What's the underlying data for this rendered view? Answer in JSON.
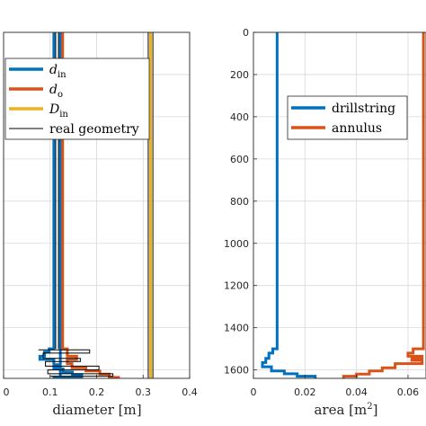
{
  "chart_data": [
    {
      "type": "line",
      "xlabel": "diameter [m]",
      "ylabel": "",
      "xlim": [
        0,
        0.4
      ],
      "ylim": [
        0,
        1640
      ],
      "y_reversed": true,
      "grid": true,
      "legend_position": "upper-left",
      "x_ticks": [
        "0",
        "0.1",
        "0.2",
        "0.3",
        "0.4"
      ],
      "legend": [
        {
          "key": "d_in",
          "label": "d",
          "sub": "in",
          "color": "#0072BD"
        },
        {
          "key": "d_o",
          "label": "d",
          "sub": "o",
          "color": "#D95319"
        },
        {
          "key": "D_in",
          "label": "D",
          "sub": "in",
          "color": "#EDB120"
        },
        {
          "key": "real",
          "label": "real geometry",
          "sub": "",
          "color": "#000000"
        }
      ],
      "series": [
        {
          "key": "d_in",
          "color": "#0072BD",
          "points": [
            [
              0.108,
              0
            ],
            [
              0.108,
              1500
            ],
            [
              0.098,
              1500
            ],
            [
              0.098,
              1515
            ],
            [
              0.088,
              1515
            ],
            [
              0.088,
              1535
            ],
            [
              0.078,
              1535
            ],
            [
              0.078,
              1550
            ],
            [
              0.108,
              1550
            ],
            [
              0.108,
              1575
            ],
            [
              0.118,
              1575
            ],
            [
              0.118,
              1585
            ],
            [
              0.108,
              1585
            ],
            [
              0.108,
              1595
            ],
            [
              0.128,
              1595
            ],
            [
              0.128,
              1610
            ],
            [
              0.148,
              1610
            ],
            [
              0.148,
              1622
            ],
            [
              0.168,
              1622
            ],
            [
              0.168,
              1635
            ],
            [
              0.108,
              1635
            ],
            [
              0.108,
              1640
            ]
          ]
        },
        {
          "key": "d_in_outer",
          "color": "#0072BD",
          "points": [
            [
              0.122,
              0
            ],
            [
              0.122,
              1500
            ],
            [
              0.122,
              1640
            ]
          ]
        },
        {
          "key": "d_o",
          "color": "#D95319",
          "points": [
            [
              0.127,
              0
            ],
            [
              0.127,
              1500
            ],
            [
              0.137,
              1500
            ],
            [
              0.137,
              1535
            ],
            [
              0.157,
              1535
            ],
            [
              0.157,
              1550
            ],
            [
              0.137,
              1550
            ],
            [
              0.137,
              1570
            ],
            [
              0.147,
              1570
            ],
            [
              0.147,
              1590
            ],
            [
              0.177,
              1590
            ],
            [
              0.177,
              1605
            ],
            [
              0.207,
              1605
            ],
            [
              0.207,
              1620
            ],
            [
              0.227,
              1620
            ],
            [
              0.227,
              1635
            ],
            [
              0.247,
              1635
            ],
            [
              0.247,
              1640
            ]
          ]
        },
        {
          "key": "D_in",
          "color": "#EDB120",
          "points": [
            [
              0.316,
              0
            ],
            [
              0.316,
              1640
            ]
          ]
        },
        {
          "key": "real",
          "color": "#000000",
          "points": [
            [
              0.311,
              0
            ],
            [
              0.311,
              1640
            ]
          ]
        },
        {
          "key": "real",
          "color": "#000000",
          "points": [
            [
              0.321,
              0
            ],
            [
              0.321,
              1640
            ]
          ]
        },
        {
          "key": "real",
          "color": "#000000",
          "points": [
            [
              0.112,
              0
            ],
            [
              0.112,
              1500
            ]
          ]
        },
        {
          "key": "real",
          "color": "#000000",
          "points": [
            [
              0.118,
              0
            ],
            [
              0.118,
              1500
            ]
          ]
        },
        {
          "key": "real",
          "color": "#000000",
          "points": [
            [
              0.075,
              1505
            ],
            [
              0.185,
              1505
            ],
            [
              0.185,
              1520
            ],
            [
              0.085,
              1520
            ],
            [
              0.085,
              1545
            ],
            [
              0.165,
              1545
            ],
            [
              0.165,
              1560
            ],
            [
              0.09,
              1560
            ],
            [
              0.09,
              1582
            ],
            [
              0.205,
              1582
            ],
            [
              0.205,
              1600
            ],
            [
              0.095,
              1600
            ],
            [
              0.095,
              1618
            ],
            [
              0.235,
              1618
            ],
            [
              0.235,
              1630
            ],
            [
              0.1,
              1630
            ]
          ]
        }
      ]
    },
    {
      "type": "line",
      "xlabel": "area [m",
      "xlabel_sup": "2",
      "xlabel_end": "]",
      "ylabel": "",
      "xlim": [
        0,
        0.067
      ],
      "ylim": [
        0,
        1640
      ],
      "y_reversed": true,
      "grid": true,
      "legend_position": "upper-right",
      "x_ticks": [
        {
          "value": 0,
          "label": "0"
        },
        {
          "value": 0.02,
          "label": "0.02"
        },
        {
          "value": 0.04,
          "label": "0.04"
        },
        {
          "value": 0.06,
          "label": "0.06"
        }
      ],
      "y_ticks": [
        {
          "value": 0,
          "label": "0"
        },
        {
          "value": 200,
          "label": "200"
        },
        {
          "value": 400,
          "label": "400"
        },
        {
          "value": 600,
          "label": "600"
        },
        {
          "value": 800,
          "label": "800"
        },
        {
          "value": 1000,
          "label": "1000"
        },
        {
          "value": 1200,
          "label": "1200"
        },
        {
          "value": 1400,
          "label": "1400"
        },
        {
          "value": 1600,
          "label": "1600"
        }
      ],
      "legend": [
        {
          "key": "drillstring",
          "label": "drillstring",
          "color": "#0072BD"
        },
        {
          "key": "annulus",
          "label": "annulus",
          "color": "#D95319"
        }
      ],
      "series": [
        {
          "key": "drillstring",
          "name": "drillstring",
          "color": "#0072BD",
          "points": [
            [
              0.0092,
              0
            ],
            [
              0.0092,
              1500
            ],
            [
              0.0075,
              1500
            ],
            [
              0.0075,
              1520
            ],
            [
              0.006,
              1520
            ],
            [
              0.006,
              1545
            ],
            [
              0.0048,
              1545
            ],
            [
              0.0048,
              1565
            ],
            [
              0.0035,
              1565
            ],
            [
              0.0035,
              1585
            ],
            [
              0.007,
              1585
            ],
            [
              0.007,
              1605
            ],
            [
              0.012,
              1605
            ],
            [
              0.012,
              1618
            ],
            [
              0.017,
              1618
            ],
            [
              0.017,
              1630
            ],
            [
              0.024,
              1630
            ],
            [
              0.024,
              1640
            ]
          ]
        },
        {
          "key": "annulus",
          "name": "annulus",
          "color": "#D95319",
          "points": [
            [
              0.066,
              0
            ],
            [
              0.066,
              1500
            ],
            [
              0.062,
              1500
            ],
            [
              0.062,
              1520
            ],
            [
              0.06,
              1520
            ],
            [
              0.06,
              1535
            ],
            [
              0.0655,
              1535
            ],
            [
              0.0655,
              1545
            ],
            [
              0.0615,
              1545
            ],
            [
              0.0615,
              1555
            ],
            [
              0.0655,
              1555
            ],
            [
              0.0655,
              1570
            ],
            [
              0.055,
              1570
            ],
            [
              0.055,
              1590
            ],
            [
              0.05,
              1590
            ],
            [
              0.05,
              1605
            ],
            [
              0.045,
              1605
            ],
            [
              0.045,
              1620
            ],
            [
              0.04,
              1620
            ],
            [
              0.04,
              1630
            ],
            [
              0.035,
              1630
            ],
            [
              0.035,
              1640
            ]
          ]
        }
      ]
    }
  ]
}
